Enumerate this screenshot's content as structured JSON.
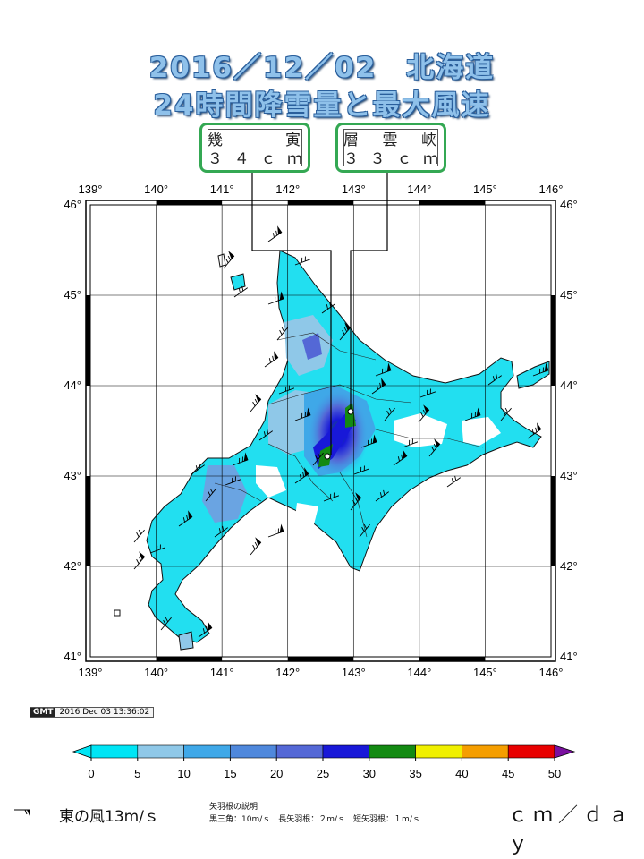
{
  "title": {
    "line1": "2016／12／02　北海道",
    "line2": "24時間降雪量と最大風速"
  },
  "stations": [
    {
      "name": "幾　　寅",
      "value": "３４ｃｍ",
      "lon": 142.6,
      "lat": 43.22,
      "color": "#34a853"
    },
    {
      "name": "層雲峡",
      "value": "３３ｃｍ",
      "lon": 142.93,
      "lat": 43.73,
      "color": "#34a853"
    }
  ],
  "map": {
    "lon_range": [
      139,
      146
    ],
    "lat_range": [
      41,
      46
    ],
    "lon_ticks": [
      "139°",
      "140°",
      "141°",
      "142°",
      "143°",
      "144°",
      "145°",
      "146°"
    ],
    "lat_ticks": [
      "41°",
      "42°",
      "43°",
      "44°",
      "45°",
      "46°"
    ],
    "grid": true
  },
  "footer": {
    "gmt_logo": "GMT",
    "timestamp": "2016 Dec 03 13:36:02",
    "wind_example": "東の風13m/ｓ",
    "barb_note_title": "矢羽根の説明",
    "barb_note_body": "黒三角：10m/ｓ　長矢羽根：２m/ｓ　短矢羽根：１m/ｓ",
    "unit": "ｃｍ／ｄａｙ"
  },
  "colorbar": {
    "ticks": [
      "0",
      "5",
      "10",
      "15",
      "20",
      "25",
      "30",
      "35",
      "40",
      "45",
      "50"
    ],
    "colors": [
      "#00e5f5",
      "#8fc8e8",
      "#3fa8e8",
      "#4f88dc",
      "#5468d6",
      "#1818d8",
      "#138a12",
      "#f0f000",
      "#f59e00",
      "#e80000",
      "#7a10a0"
    ]
  }
}
